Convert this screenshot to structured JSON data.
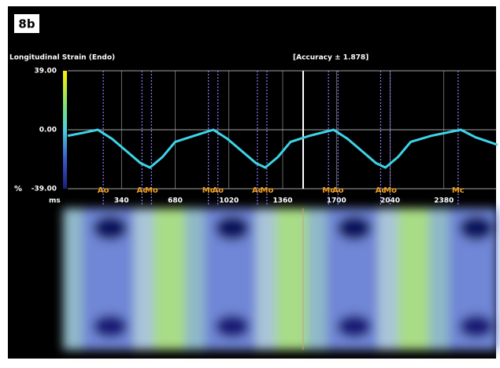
{
  "figure_label": "8b",
  "chart_data": {
    "type": "line",
    "title": "Longitudinal Strain (Endo)",
    "subtitle": "[Accuracy ± 1.878]",
    "y_label": "%",
    "x_label": "ms",
    "color": "#3fd3e8",
    "x": [
      0,
      100,
      190,
      280,
      370,
      460,
      520,
      600,
      680,
      800,
      921,
      1010,
      1100,
      1190,
      1250,
      1330,
      1410,
      1530,
      1682,
      1770,
      1860,
      1950,
      2010,
      2090,
      2170,
      2300,
      2487,
      2580,
      2720
    ],
    "values": [
      -4,
      -2,
      0,
      -6,
      -14,
      -22,
      -25,
      -18,
      -8,
      -4,
      0,
      -6,
      -14,
      -22,
      -25,
      -18,
      -8,
      -4,
      0,
      -6,
      -14,
      -22,
      -25,
      -18,
      -8,
      -4,
      0,
      -5,
      -10
    ],
    "xlim": [
      0,
      2720
    ],
    "xticks": [
      340,
      680,
      1020,
      1360,
      1700,
      2040,
      2380
    ],
    "ylim": [
      -39,
      39
    ],
    "yticks": [
      {
        "value": 39,
        "label": "39.00"
      },
      {
        "value": 0,
        "label": "0.00"
      },
      {
        "value": -39,
        "label": "-39.00"
      }
    ],
    "grid": true,
    "annotations": [
      {
        "text": "Ao",
        "x": 225
      },
      {
        "text": "Ac",
        "x": 470
      },
      {
        "text": "Mo",
        "x": 530
      },
      {
        "text": "Mc",
        "x": 890
      },
      {
        "text": "Ao",
        "x": 950
      },
      {
        "text": "Ac",
        "x": 1200
      },
      {
        "text": "Mo",
        "x": 1260
      },
      {
        "text": "Mc",
        "x": 1650
      },
      {
        "text": "Ao",
        "x": 1710
      },
      {
        "text": "Ac",
        "x": 1980
      },
      {
        "text": "Mo",
        "x": 2040
      },
      {
        "text": "Mc",
        "x": 2470
      }
    ]
  }
}
